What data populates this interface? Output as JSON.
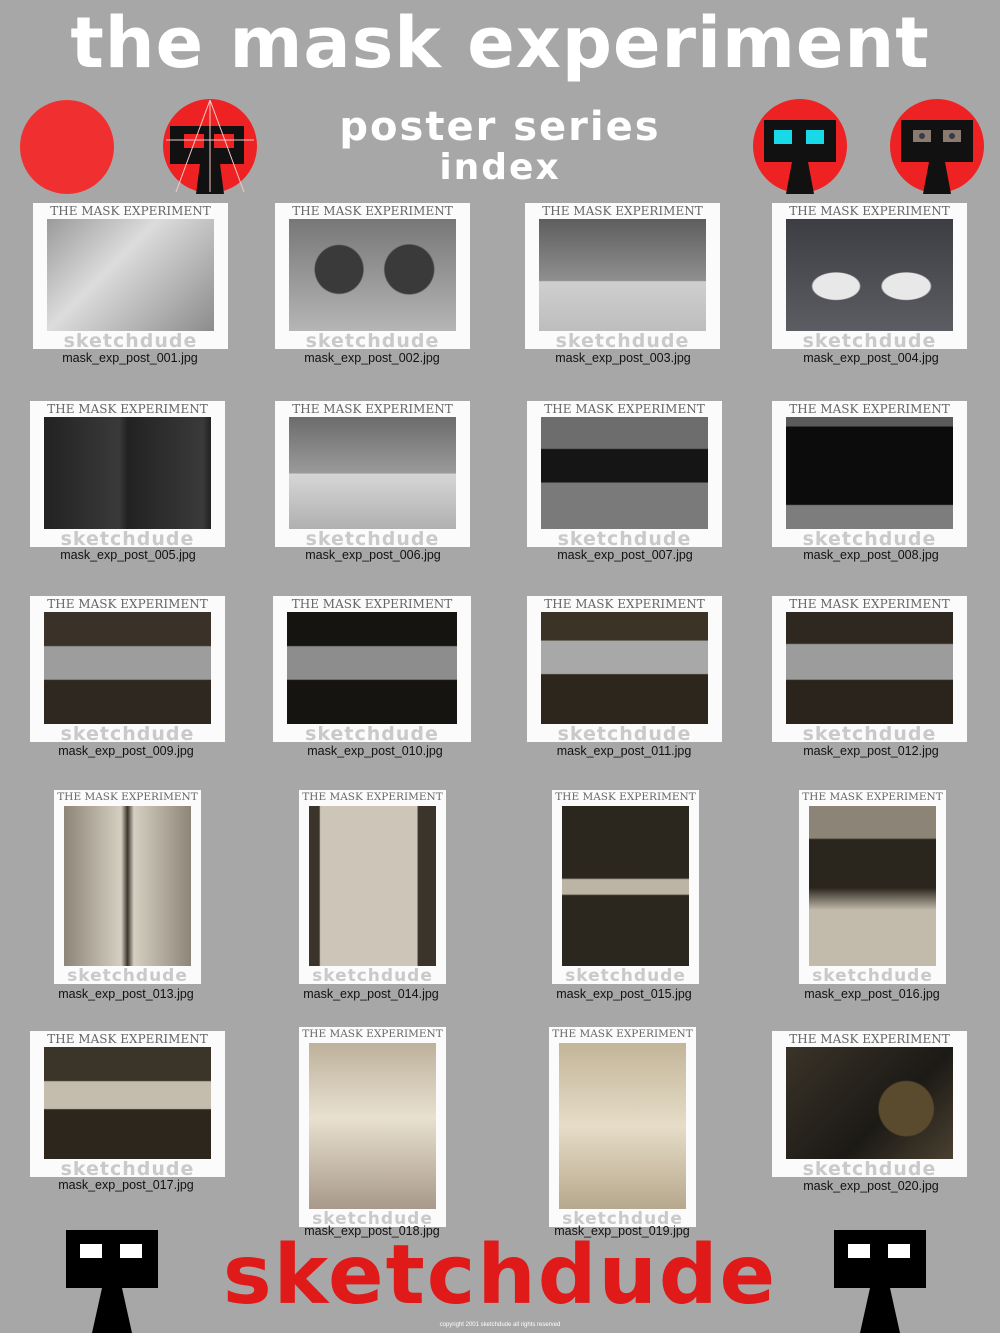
{
  "header": {
    "title": "the mask experiment",
    "subtitle": "poster series",
    "index_label": "index"
  },
  "thumb_header": "THE MASK EXPERIMENT",
  "thumb_footer": "sketchdude",
  "thumbnails": [
    {
      "file": "mask_exp_post_001.jpg"
    },
    {
      "file": "mask_exp_post_002.jpg"
    },
    {
      "file": "mask_exp_post_003.jpg"
    },
    {
      "file": "mask_exp_post_004.jpg"
    },
    {
      "file": "mask_exp_post_005.jpg"
    },
    {
      "file": "mask_exp_post_006.jpg"
    },
    {
      "file": "mask_exp_post_007.jpg"
    },
    {
      "file": "mask_exp_post_008.jpg"
    },
    {
      "file": "mask_exp_post_009.jpg"
    },
    {
      "file": "mask_exp_post_010.jpg"
    },
    {
      "file": "mask_exp_post_011.jpg"
    },
    {
      "file": "mask_exp_post_012.jpg"
    },
    {
      "file": "mask_exp_post_013.jpg"
    },
    {
      "file": "mask_exp_post_014.jpg"
    },
    {
      "file": "mask_exp_post_015.jpg"
    },
    {
      "file": "mask_exp_post_016.jpg"
    },
    {
      "file": "mask_exp_post_017.jpg"
    },
    {
      "file": "mask_exp_post_018.jpg"
    },
    {
      "file": "mask_exp_post_019.jpg"
    },
    {
      "file": "mask_exp_post_020.jpg"
    }
  ],
  "footer": {
    "brand": "sketchdude",
    "copyright": "copyright 2001 sketchdude all rights reserved"
  },
  "colors": {
    "background": "#a7a7a7",
    "accent_red": "#e01919",
    "mask_cyan": "#19d8e8"
  },
  "icons": [
    "red-circle-icon",
    "mask-sketch-icon",
    "mask-cyan-eyes-icon",
    "mask-photo-eyes-icon",
    "mask-figure-icon"
  ]
}
